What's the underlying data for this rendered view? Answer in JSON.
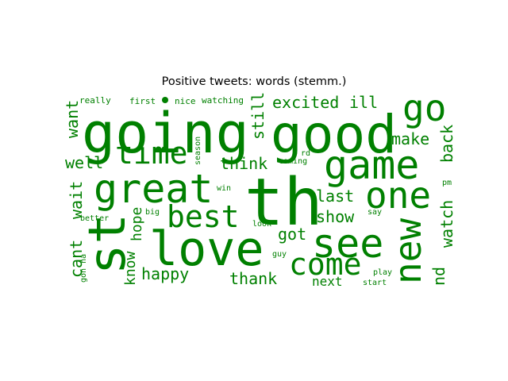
{
  "title": "Positive tweets: words (stemm.)",
  "colors": {
    "word": "#008000",
    "background": "#ffffff"
  },
  "words": [
    "going",
    "good",
    "th",
    "go",
    "game",
    "great",
    "love",
    "st",
    "see",
    "new",
    "one",
    "time",
    "best",
    "come",
    "excited",
    "ill",
    "make",
    "back",
    "think",
    "still",
    "last",
    "show",
    "watch",
    "got",
    "wait",
    "want",
    "well",
    "cant",
    "happy",
    "thank",
    "next",
    "nd",
    "hope",
    "know",
    "really",
    "first",
    "nice",
    "watching",
    "season",
    "coming",
    "rd",
    "win",
    "pm",
    "big",
    "say",
    "better",
    "look",
    "guy",
    "play",
    "start",
    "gon na"
  ]
}
